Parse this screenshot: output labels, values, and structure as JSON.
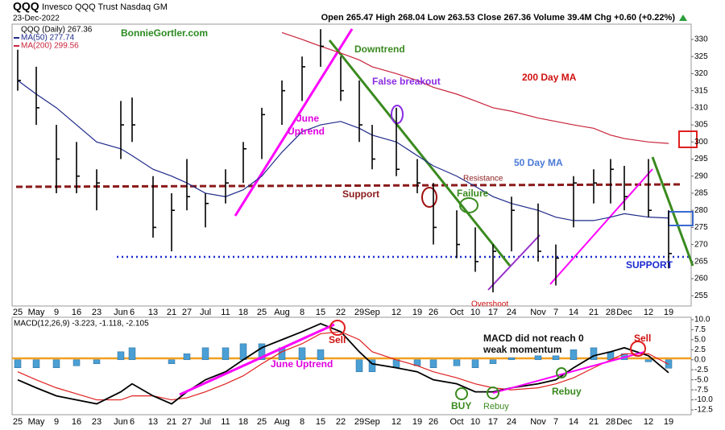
{
  "chart_data": [
    {
      "type": "ohlc",
      "symbol": "QQQ",
      "name": "Invesco QQQ Trust Nasdaq GM",
      "date": "23-Dec-2022",
      "quote": "Open 265.47 High 268.04 Low 263.53 Close 267.36 Volume 39.4M Chg +0.60 (+0.22%)",
      "categories": [
        "25",
        "May",
        "9",
        "16",
        "23",
        "Jun",
        "6",
        "13",
        "21",
        "27",
        "Jul",
        "11",
        "18",
        "25",
        "Aug",
        "8",
        "15",
        "22",
        "29",
        "Sep",
        "12",
        "19",
        "26",
        "Oct",
        "10",
        "17",
        "24",
        "Nov",
        "7",
        "14",
        "21",
        "28",
        "Dec",
        "12",
        "19"
      ],
      "ohlc": {
        "name": "QQQ (Daily) 267.36",
        "color": "#000000",
        "high": [
          327,
          322,
          305,
          300,
          292,
          312,
          313,
          290,
          285,
          295,
          285,
          292,
          300,
          310,
          318,
          325,
          333,
          325,
          318,
          305,
          310,
          295,
          288,
          280,
          275,
          270,
          284,
          282,
          270,
          290,
          292,
          295,
          293,
          295,
          280
        ],
        "low": [
          315,
          305,
          285,
          285,
          280,
          295,
          300,
          272,
          268,
          280,
          275,
          282,
          288,
          295,
          305,
          312,
          322,
          312,
          300,
          292,
          290,
          285,
          270,
          266,
          262,
          256,
          268,
          265,
          258,
          275,
          282,
          282,
          280,
          278,
          263
        ],
        "close": [
          318,
          310,
          295,
          290,
          288,
          305,
          305,
          275,
          280,
          284,
          282,
          288,
          298,
          308,
          315,
          322,
          328,
          315,
          305,
          295,
          292,
          288,
          275,
          270,
          265,
          268,
          280,
          268,
          266,
          288,
          288,
          292,
          284,
          280,
          267.36
        ]
      },
      "series": [
        {
          "name": "MA(50) 277.74",
          "color": "#1f2a8a",
          "values": [
            318,
            314,
            310,
            305,
            300,
            298,
            296,
            292,
            290,
            288,
            285,
            284,
            286,
            290,
            297,
            303,
            305,
            306,
            304,
            302,
            300,
            296,
            293,
            290,
            287,
            284,
            282,
            280,
            278,
            277,
            277,
            278,
            279,
            278,
            277.74
          ]
        },
        {
          "name": "MA(200) 299.56",
          "color": "#c8243c",
          "values": [
            null,
            null,
            null,
            null,
            null,
            null,
            null,
            null,
            null,
            null,
            null,
            null,
            null,
            null,
            332,
            330,
            328,
            326,
            324,
            322,
            320,
            318,
            316,
            314,
            312,
            310,
            309,
            307,
            306,
            305,
            304,
            302,
            301,
            300,
            299.56
          ]
        }
      ],
      "ylim": [
        252,
        334
      ],
      "yticks": [
        255,
        260,
        265,
        270,
        275,
        280,
        285,
        290,
        295,
        300,
        305,
        310,
        315,
        320,
        325,
        330
      ],
      "annotations": [
        "BonnieGortler.com",
        "Downtrend",
        "False breakout",
        "June",
        "Uptrend",
        "200 Day MA",
        "50 Day MA",
        "Resistance",
        "Support",
        "Failure",
        "SUPPORT",
        "Overshoot"
      ]
    },
    {
      "type": "macd",
      "title": "MACD(12,26,9) -3.223, -1.118, -2.105",
      "categories": [
        "25",
        "May",
        "9",
        "16",
        "23",
        "Jun",
        "6",
        "13",
        "21",
        "27",
        "Jul",
        "11",
        "18",
        "25",
        "Aug",
        "8",
        "15",
        "22",
        "29",
        "Sep",
        "12",
        "19",
        "26",
        "Oct",
        "10",
        "17",
        "24",
        "Nov",
        "7",
        "14",
        "21",
        "28",
        "Dec",
        "12",
        "19"
      ],
      "series": [
        {
          "name": "MACD",
          "color": "#000000",
          "values": [
            -5,
            -7,
            -9,
            -10,
            -11,
            -8,
            -6,
            -9,
            -11,
            -8,
            -5,
            -3,
            0,
            3,
            5,
            7,
            9,
            7,
            2,
            -1,
            -2,
            -3,
            -5,
            -6,
            -8,
            -8,
            -7,
            -6,
            -5,
            -2,
            1,
            2,
            3,
            1,
            -3.223
          ]
        },
        {
          "name": "Signal",
          "color": "#e02020",
          "values": [
            -3,
            -5,
            -7,
            -8.5,
            -10,
            -10,
            -9,
            -9,
            -10,
            -9.5,
            -8,
            -6,
            -4,
            -1,
            2,
            4,
            6.5,
            7,
            5,
            2,
            0,
            -1.5,
            -3,
            -4.5,
            -6,
            -7,
            -7.5,
            -7,
            -6,
            -4.5,
            -2,
            0,
            1.5,
            1.5,
            -1.118
          ]
        },
        {
          "name": "Histogram",
          "color": "#4a9fd4",
          "values": [
            -2,
            -2,
            -2,
            -1.5,
            -1,
            2,
            3,
            0,
            -1,
            1.5,
            3,
            3,
            4,
            4,
            3,
            3,
            2.5,
            0,
            -3,
            -3,
            -2,
            -1.5,
            -2,
            -1.5,
            -2,
            -1,
            0.5,
            1,
            1,
            2.5,
            3,
            2,
            1.5,
            -0.5,
            -2.105
          ]
        }
      ],
      "ylim": [
        -13.5,
        10.5
      ],
      "yticks": [
        {
          "value": 10,
          "label": "10.0"
        },
        7.5,
        {
          "value": 5,
          "label": "5.0"
        },
        2.5,
        {
          "value": 0,
          "label": "0.0"
        },
        -2.5,
        {
          "value": -5,
          "label": "-5.0"
        },
        -7.5,
        {
          "value": -10,
          "label": "-10.0"
        },
        -12.5
      ],
      "annotations": [
        "Sell",
        "June Uptrend",
        "MACD did not reach 0",
        "weak momentum",
        "Sell",
        "BUY",
        "Rebuy",
        "Rebuy"
      ]
    }
  ]
}
